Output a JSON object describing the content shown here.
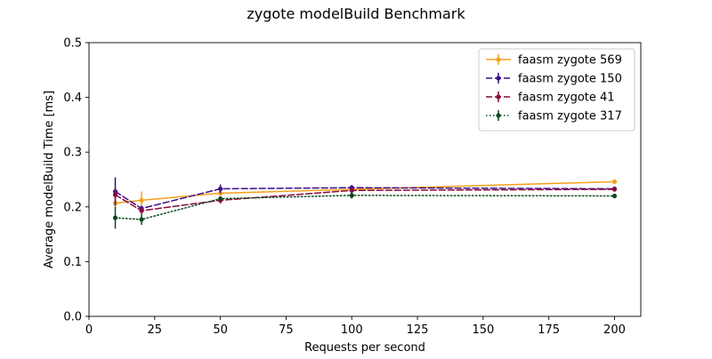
{
  "chart_data": {
    "type": "line",
    "title": "zygote modelBuild Benchmark",
    "xlabel": "Requests per second",
    "ylabel": "Average modelBuild Time [ms]",
    "xlim": [
      0,
      210
    ],
    "ylim": [
      0,
      0.5
    ],
    "xticks": [
      0,
      25,
      50,
      75,
      100,
      125,
      150,
      175,
      200
    ],
    "yticks": [
      0.0,
      0.1,
      0.2,
      0.3,
      0.4,
      0.5
    ],
    "xtick_labels": [
      "0",
      "25",
      "50",
      "75",
      "100",
      "125",
      "150",
      "175",
      "200"
    ],
    "ytick_labels": [
      "0.0",
      "0.1",
      "0.2",
      "0.3",
      "0.4",
      "0.5"
    ],
    "grid": false,
    "legend_position": "top-right",
    "x": [
      10,
      20,
      50,
      100,
      200
    ],
    "series": [
      {
        "name": "faasm zygote 569",
        "color": "#f5a01a",
        "line_style": "solid",
        "values": [
          0.207,
          0.212,
          0.225,
          0.232,
          0.246
        ],
        "errors": [
          0.008,
          0.016,
          0.005,
          0.004,
          0.003
        ]
      },
      {
        "name": "faasm zygote 150",
        "color": "#3b0f8c",
        "line_style": "dashed",
        "values": [
          0.228,
          0.197,
          0.233,
          0.235,
          0.233
        ],
        "errors": [
          0.026,
          0.005,
          0.008,
          0.005,
          0.003
        ]
      },
      {
        "name": "faasm zygote 41",
        "color": "#8b0a3c",
        "line_style": "dashed",
        "values": [
          0.222,
          0.193,
          0.212,
          0.23,
          0.232
        ],
        "errors": [
          0.012,
          0.006,
          0.006,
          0.006,
          0.003
        ]
      },
      {
        "name": "faasm zygote 317",
        "color": "#0a4a1e",
        "line_style": "dotted",
        "values": [
          0.18,
          0.177,
          0.215,
          0.221,
          0.22
        ],
        "errors": [
          0.02,
          0.01,
          0.004,
          0.006,
          0.004
        ]
      }
    ]
  }
}
